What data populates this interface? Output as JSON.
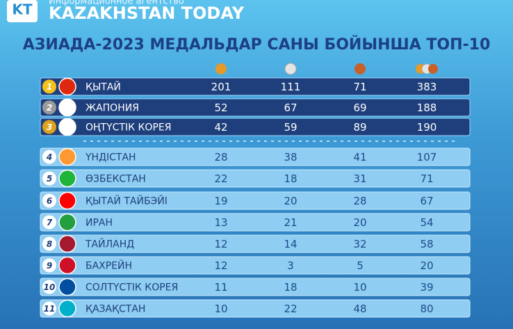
{
  "header": {
    "logo": "KT",
    "tagline": "Информационное агентство",
    "brand": "KAZAKHSTAN TODAY"
  },
  "title": "АЗИАДА-2023 МЕДАЛЬДАР САНЫ БОЙЫНША ТОП-10",
  "table": {
    "rows": [
      [
        1,
        "ҚЫТАЙ",
        201,
        111,
        71,
        383
      ],
      [
        2,
        "ЖАПОНИЯ",
        52,
        67,
        69,
        188
      ],
      [
        3,
        "ОҢТҮСТІК КОРЕЯ",
        42,
        59,
        89,
        190
      ],
      [
        4,
        "ҮНДІСТАН",
        28,
        38,
        41,
        107
      ],
      [
        5,
        "ӨЗБЕКСТАН",
        22,
        18,
        31,
        71
      ],
      [
        6,
        "ҚЫТАЙ ТАЙБЭЙІ",
        19,
        20,
        28,
        67
      ],
      [
        7,
        "ИРАН",
        13,
        21,
        20,
        54
      ],
      [
        8,
        "ТАЙЛАНД",
        12,
        14,
        32,
        58
      ],
      [
        9,
        "БАХРЕЙН",
        12,
        3,
        5,
        20
      ],
      [
        10,
        "СОЛТҮСТІК КОРЕЯ",
        11,
        18,
        10,
        39
      ],
      [
        11,
        "ҚАЗАҚСТАН",
        10,
        22,
        48,
        80
      ]
    ]
  }
}
